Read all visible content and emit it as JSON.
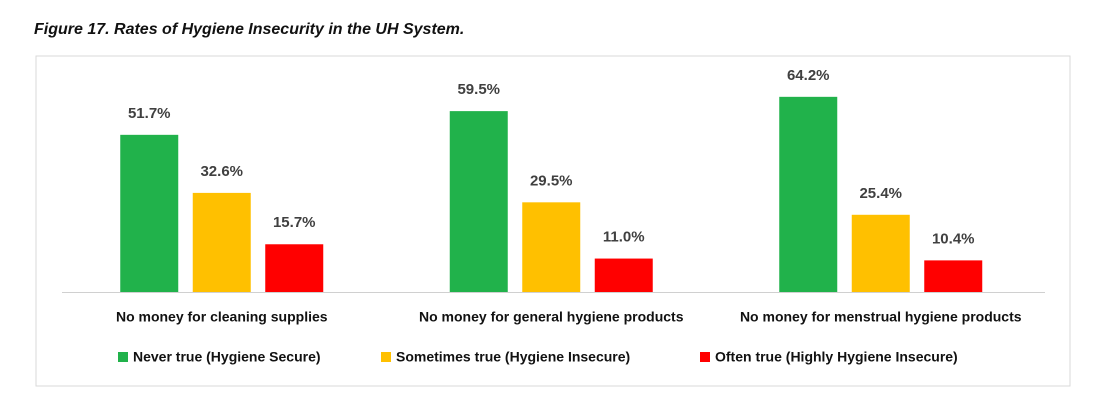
{
  "chart_data": {
    "type": "bar",
    "title": "Figure 17. Rates of Hygiene Insecurity in the UH System.",
    "categories": [
      "No money for cleaning supplies",
      "No money for general hygiene products",
      "No money for menstrual hygiene products"
    ],
    "series": [
      {
        "name": "Never true (Hygiene Secure)",
        "color": "#21b24b",
        "values": [
          51.7,
          59.5,
          64.2
        ],
        "value_labels": [
          "51.7%",
          "59.5%",
          "64.2%"
        ]
      },
      {
        "name": "Sometimes true (Hygiene Insecure)",
        "color": "#ffc000",
        "values": [
          32.6,
          29.5,
          25.4
        ],
        "value_labels": [
          "32.6%",
          "29.5%",
          "25.4%"
        ]
      },
      {
        "name": "Often true (Highly Hygiene Insecure)",
        "color": "#ff0000",
        "values": [
          15.7,
          11.0,
          10.4
        ],
        "value_labels": [
          "15.7%",
          "11.0%",
          "10.4%"
        ]
      }
    ],
    "legend": "bottom"
  }
}
